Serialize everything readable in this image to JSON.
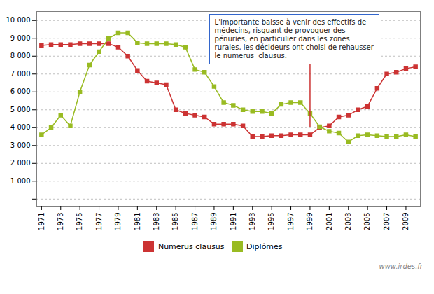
{
  "chart_data": {
    "type": "line",
    "x": [
      1971,
      1972,
      1973,
      1974,
      1975,
      1976,
      1977,
      1978,
      1979,
      1980,
      1981,
      1982,
      1983,
      1984,
      1985,
      1986,
      1987,
      1988,
      1989,
      1990,
      1991,
      1992,
      1993,
      1994,
      1995,
      1996,
      1997,
      1998,
      1999,
      2000,
      2001,
      2002,
      2003,
      2004,
      2005,
      2006,
      2007,
      2008,
      2009,
      2010
    ],
    "series": [
      {
        "name": "Numerus clausus",
        "color": "#CC3333",
        "marker": "square",
        "values": [
          8600,
          8650,
          8650,
          8650,
          8700,
          8700,
          8700,
          8700,
          8500,
          8000,
          7200,
          6600,
          6500,
          6400,
          5000,
          4800,
          4700,
          4600,
          4200,
          4200,
          4200,
          4100,
          3500,
          3500,
          3550,
          3550,
          3600,
          3600,
          3600,
          4000,
          4100,
          4600,
          4700,
          5000,
          5200,
          6200,
          7000,
          7100,
          7300,
          7400
        ]
      },
      {
        "name": "Diplômes",
        "color": "#99BB22",
        "marker": "square",
        "values": [
          3600,
          4000,
          4700,
          4100,
          6000,
          7500,
          8250,
          9000,
          9300,
          9300,
          8750,
          8700,
          8700,
          8700,
          8650,
          8500,
          7250,
          7100,
          6300,
          5400,
          5250,
          5000,
          4900,
          4900,
          4800,
          5300,
          5400,
          5400,
          4800,
          4050,
          3800,
          3700,
          3200,
          3550,
          3600,
          3550,
          3500,
          3500,
          3600,
          3500
        ]
      }
    ],
    "xlim": [
      1970.5,
      2010.5
    ],
    "xticks": [
      1971,
      1973,
      1975,
      1977,
      1979,
      1981,
      1983,
      1985,
      1987,
      1989,
      1991,
      1993,
      1995,
      1997,
      1999,
      2001,
      2003,
      2005,
      2007,
      2009
    ],
    "ylim": [
      -400,
      10500
    ],
    "yticks": [
      {
        "value": 0,
        "label": "-"
      },
      {
        "value": 1000,
        "label": "1 000"
      },
      {
        "value": 2000,
        "label": "2 000"
      },
      {
        "value": 3000,
        "label": "3 000"
      },
      {
        "value": 4000,
        "label": "4 000"
      },
      {
        "value": 5000,
        "label": "5 000"
      },
      {
        "value": 6000,
        "label": "6 000"
      },
      {
        "value": 7000,
        "label": "7 000"
      },
      {
        "value": 8000,
        "label": "8 000"
      },
      {
        "value": 9000,
        "label": "9 000"
      },
      {
        "value": 10000,
        "label": "10 000"
      }
    ],
    "grid": true,
    "legend": "bottom",
    "annotations": [
      {
        "text": "L'importante baisse à venir des effectifs de\nmédecins, risquant de provoquer des\npénuries, en particulier dans les zones\nrurales, les décideurs ont choisi de rehausser\nle numerus  clausus."
      },
      {
        "text": "www.irdes.fr"
      }
    ],
    "lines": [
      {
        "x": 1999,
        "y1": 4000,
        "y2": 7600,
        "color": "#CC3333"
      }
    ]
  }
}
